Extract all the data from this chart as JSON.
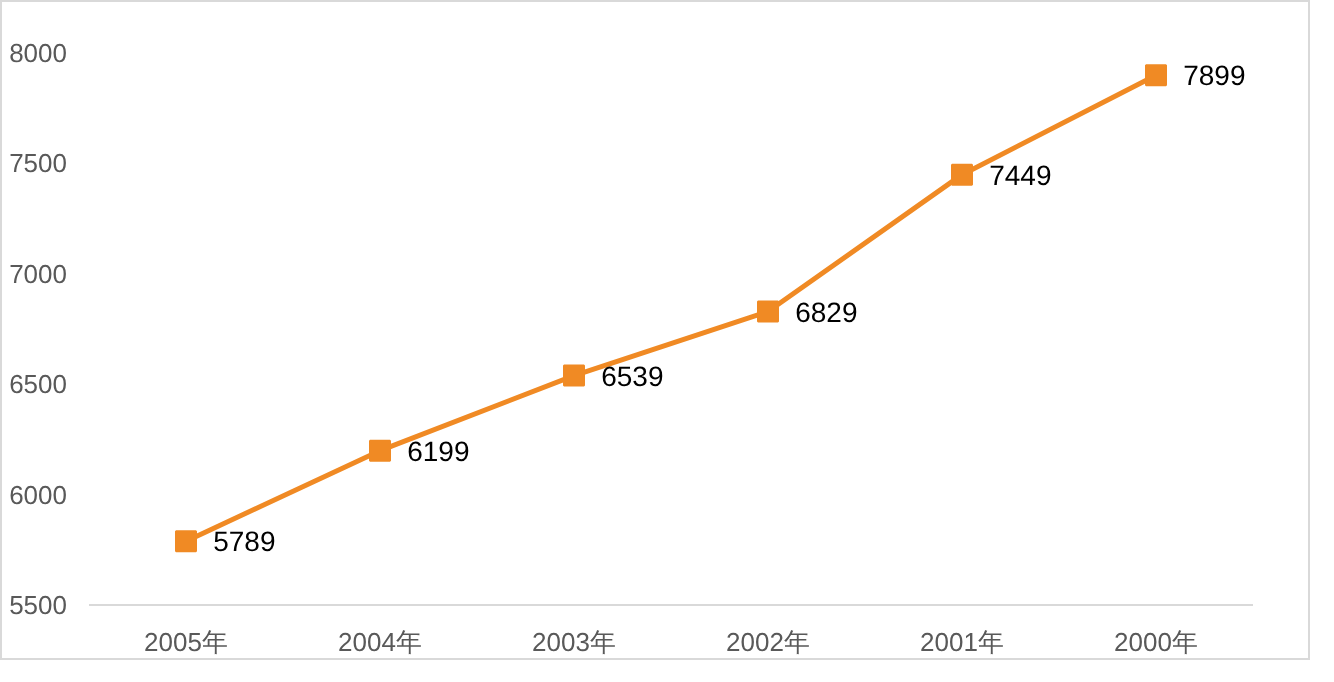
{
  "chart_data": {
    "type": "line",
    "categories": [
      "2005年",
      "2004年",
      "2003年",
      "2002年",
      "2001年",
      "2000年"
    ],
    "series": [
      {
        "color": "#f08a24",
        "values": [
          5789,
          6199,
          6539,
          6829,
          7449,
          7899
        ]
      }
    ],
    "ylim": [
      5500,
      8000
    ],
    "yticks": [
      5500,
      6000,
      6500,
      7000,
      7500,
      8000
    ],
    "grid": false,
    "marker": "square",
    "line_style": "solid",
    "data_labels": true
  }
}
